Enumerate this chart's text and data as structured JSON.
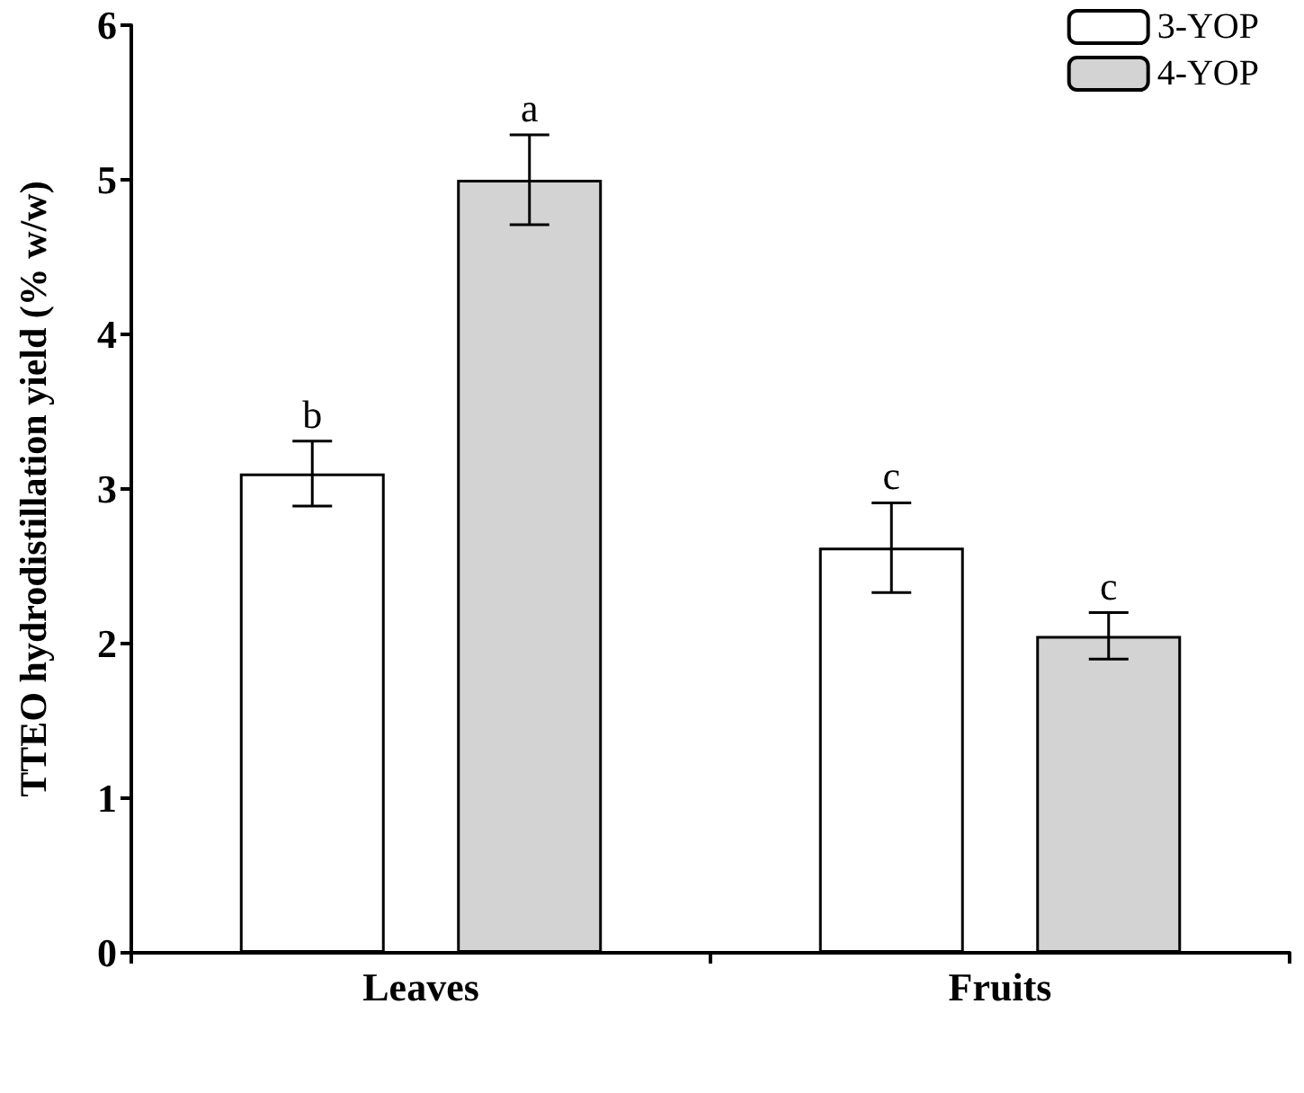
{
  "chart_data": {
    "type": "bar",
    "ylabel": "TTEO hydrodistillation yield (% w/w)",
    "categories": [
      "Leaves",
      "Fruits"
    ],
    "series": [
      {
        "name": "3-YOP",
        "color": "#ffffff",
        "values": [
          3.1,
          2.62
        ],
        "errors": [
          0.21,
          0.29
        ],
        "value_labels": [
          "b",
          "c"
        ]
      },
      {
        "name": "4-YOP",
        "color": "#d3d3d3",
        "values": [
          5.0,
          2.05
        ],
        "errors": [
          0.29,
          0.15
        ],
        "value_labels": [
          "a",
          "c"
        ]
      }
    ],
    "ylim": [
      0,
      6
    ],
    "yticks": [
      0,
      1,
      2,
      3,
      4,
      5,
      6
    ],
    "grid": false,
    "legend": "top right"
  }
}
